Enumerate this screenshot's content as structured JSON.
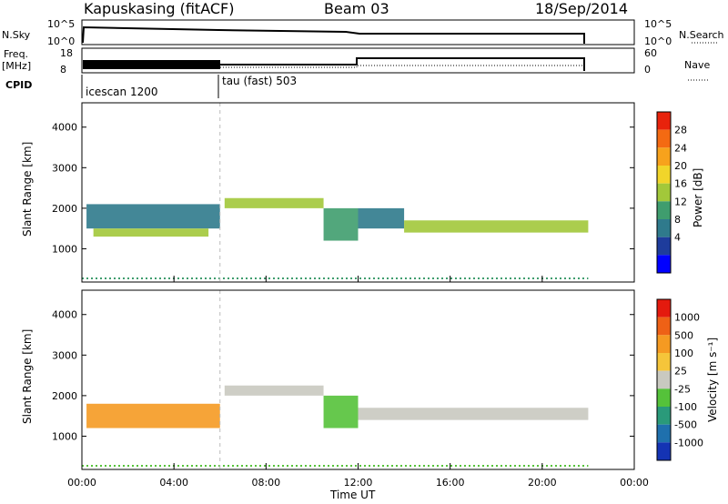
{
  "header": {
    "station": "Kapuskasing (fitACF)",
    "beam": "Beam 03",
    "date": "18/Sep/2014"
  },
  "top_panels": {
    "nsky_label": "N.Sky",
    "nsky_ticks": [
      "10^5",
      "10^0"
    ],
    "nsearch_label": "N.Search",
    "nsearch_ticks": [
      "10^5",
      "10^0"
    ],
    "freq_label_1": "Freq.",
    "freq_label_2": "[MHz]",
    "freq_ticks": [
      "18",
      "8"
    ],
    "nave_label": "Nave",
    "nave_ticks": [
      "60",
      "0"
    ],
    "cpid_label": "CPID",
    "cpid_segments": [
      {
        "name": "icescan 1200",
        "start": 0,
        "end": 6
      },
      {
        "name": "tau (fast) 503",
        "start": 6,
        "end": 22
      }
    ]
  },
  "x_axis": {
    "label": "Time UT",
    "ticks": [
      "00:00",
      "04:00",
      "08:00",
      "12:00",
      "16:00",
      "20:00",
      "00:00"
    ],
    "tick_hours": [
      0,
      4,
      8,
      12,
      16,
      20,
      24
    ]
  },
  "power_panel": {
    "ylabel": "Slant Range [km]",
    "yticks": [
      "4000",
      "3000",
      "2000",
      "1000"
    ],
    "ytick_values": [
      4000,
      3000,
      2000,
      1000
    ],
    "cbar_label": "Power [dB]",
    "cbar_ticks": [
      "28",
      "24",
      "20",
      "16",
      "12",
      "8",
      "4"
    ],
    "cbar_colors": [
      "#0000ff",
      "#1e3c9c",
      "#2f7a8c",
      "#3f9d6e",
      "#a2c83a",
      "#f1d52a",
      "#f7a21c",
      "#f46a12",
      "#e8230c"
    ]
  },
  "velocity_panel": {
    "ylabel": "Slant Range [km]",
    "yticks": [
      "4000",
      "3000",
      "2000",
      "1000"
    ],
    "ytick_values": [
      4000,
      3000,
      2000,
      1000
    ],
    "cbar_label": "Velocity [m s⁻¹]",
    "cbar_ticks": [
      "1000",
      "500",
      "100",
      "25",
      "-25",
      "-100",
      "-500",
      "-1000"
    ],
    "cbar_colors": [
      "#1433b4",
      "#1f70ad",
      "#2a9a7a",
      "#55c23a",
      "#c9c9c0",
      "#f5c53a",
      "#f59a22",
      "#ee6116",
      "#e41a0e"
    ]
  },
  "chart_data": {
    "type": "heatmap",
    "x_range_hours": [
      0,
      24
    ],
    "y_range_km": [
      180,
      4600
    ],
    "data_end_hour": 22,
    "power_bands": [
      {
        "t0": 0.2,
        "t1": 6.0,
        "r0": 1500,
        "r1": 2100,
        "level": 2
      },
      {
        "t0": 0.5,
        "t1": 5.5,
        "r0": 1300,
        "r1": 1500,
        "level": 4
      },
      {
        "t0": 6.2,
        "t1": 10.5,
        "r0": 2000,
        "r1": 2250,
        "level": 4
      },
      {
        "t0": 10.5,
        "t1": 12.0,
        "r0": 1200,
        "r1": 2000,
        "level": 3
      },
      {
        "t0": 12.0,
        "t1": 14.0,
        "r0": 1500,
        "r1": 2000,
        "level": 2
      },
      {
        "t0": 14.0,
        "t1": 22.0,
        "r0": 1400,
        "r1": 1700,
        "level": 4
      }
    ],
    "velocity_bands": [
      {
        "t0": 0.2,
        "t1": 6.0,
        "r0": 1200,
        "r1": 1800,
        "level": 6
      },
      {
        "t0": 6.2,
        "t1": 10.5,
        "r0": 2000,
        "r1": 2250,
        "level": 4
      },
      {
        "t0": 10.5,
        "t1": 12.0,
        "r0": 1200,
        "r1": 2000,
        "level": 3
      },
      {
        "t0": 12.0,
        "t1": 22.0,
        "r0": 1400,
        "r1": 1700,
        "level": 4
      }
    ]
  }
}
